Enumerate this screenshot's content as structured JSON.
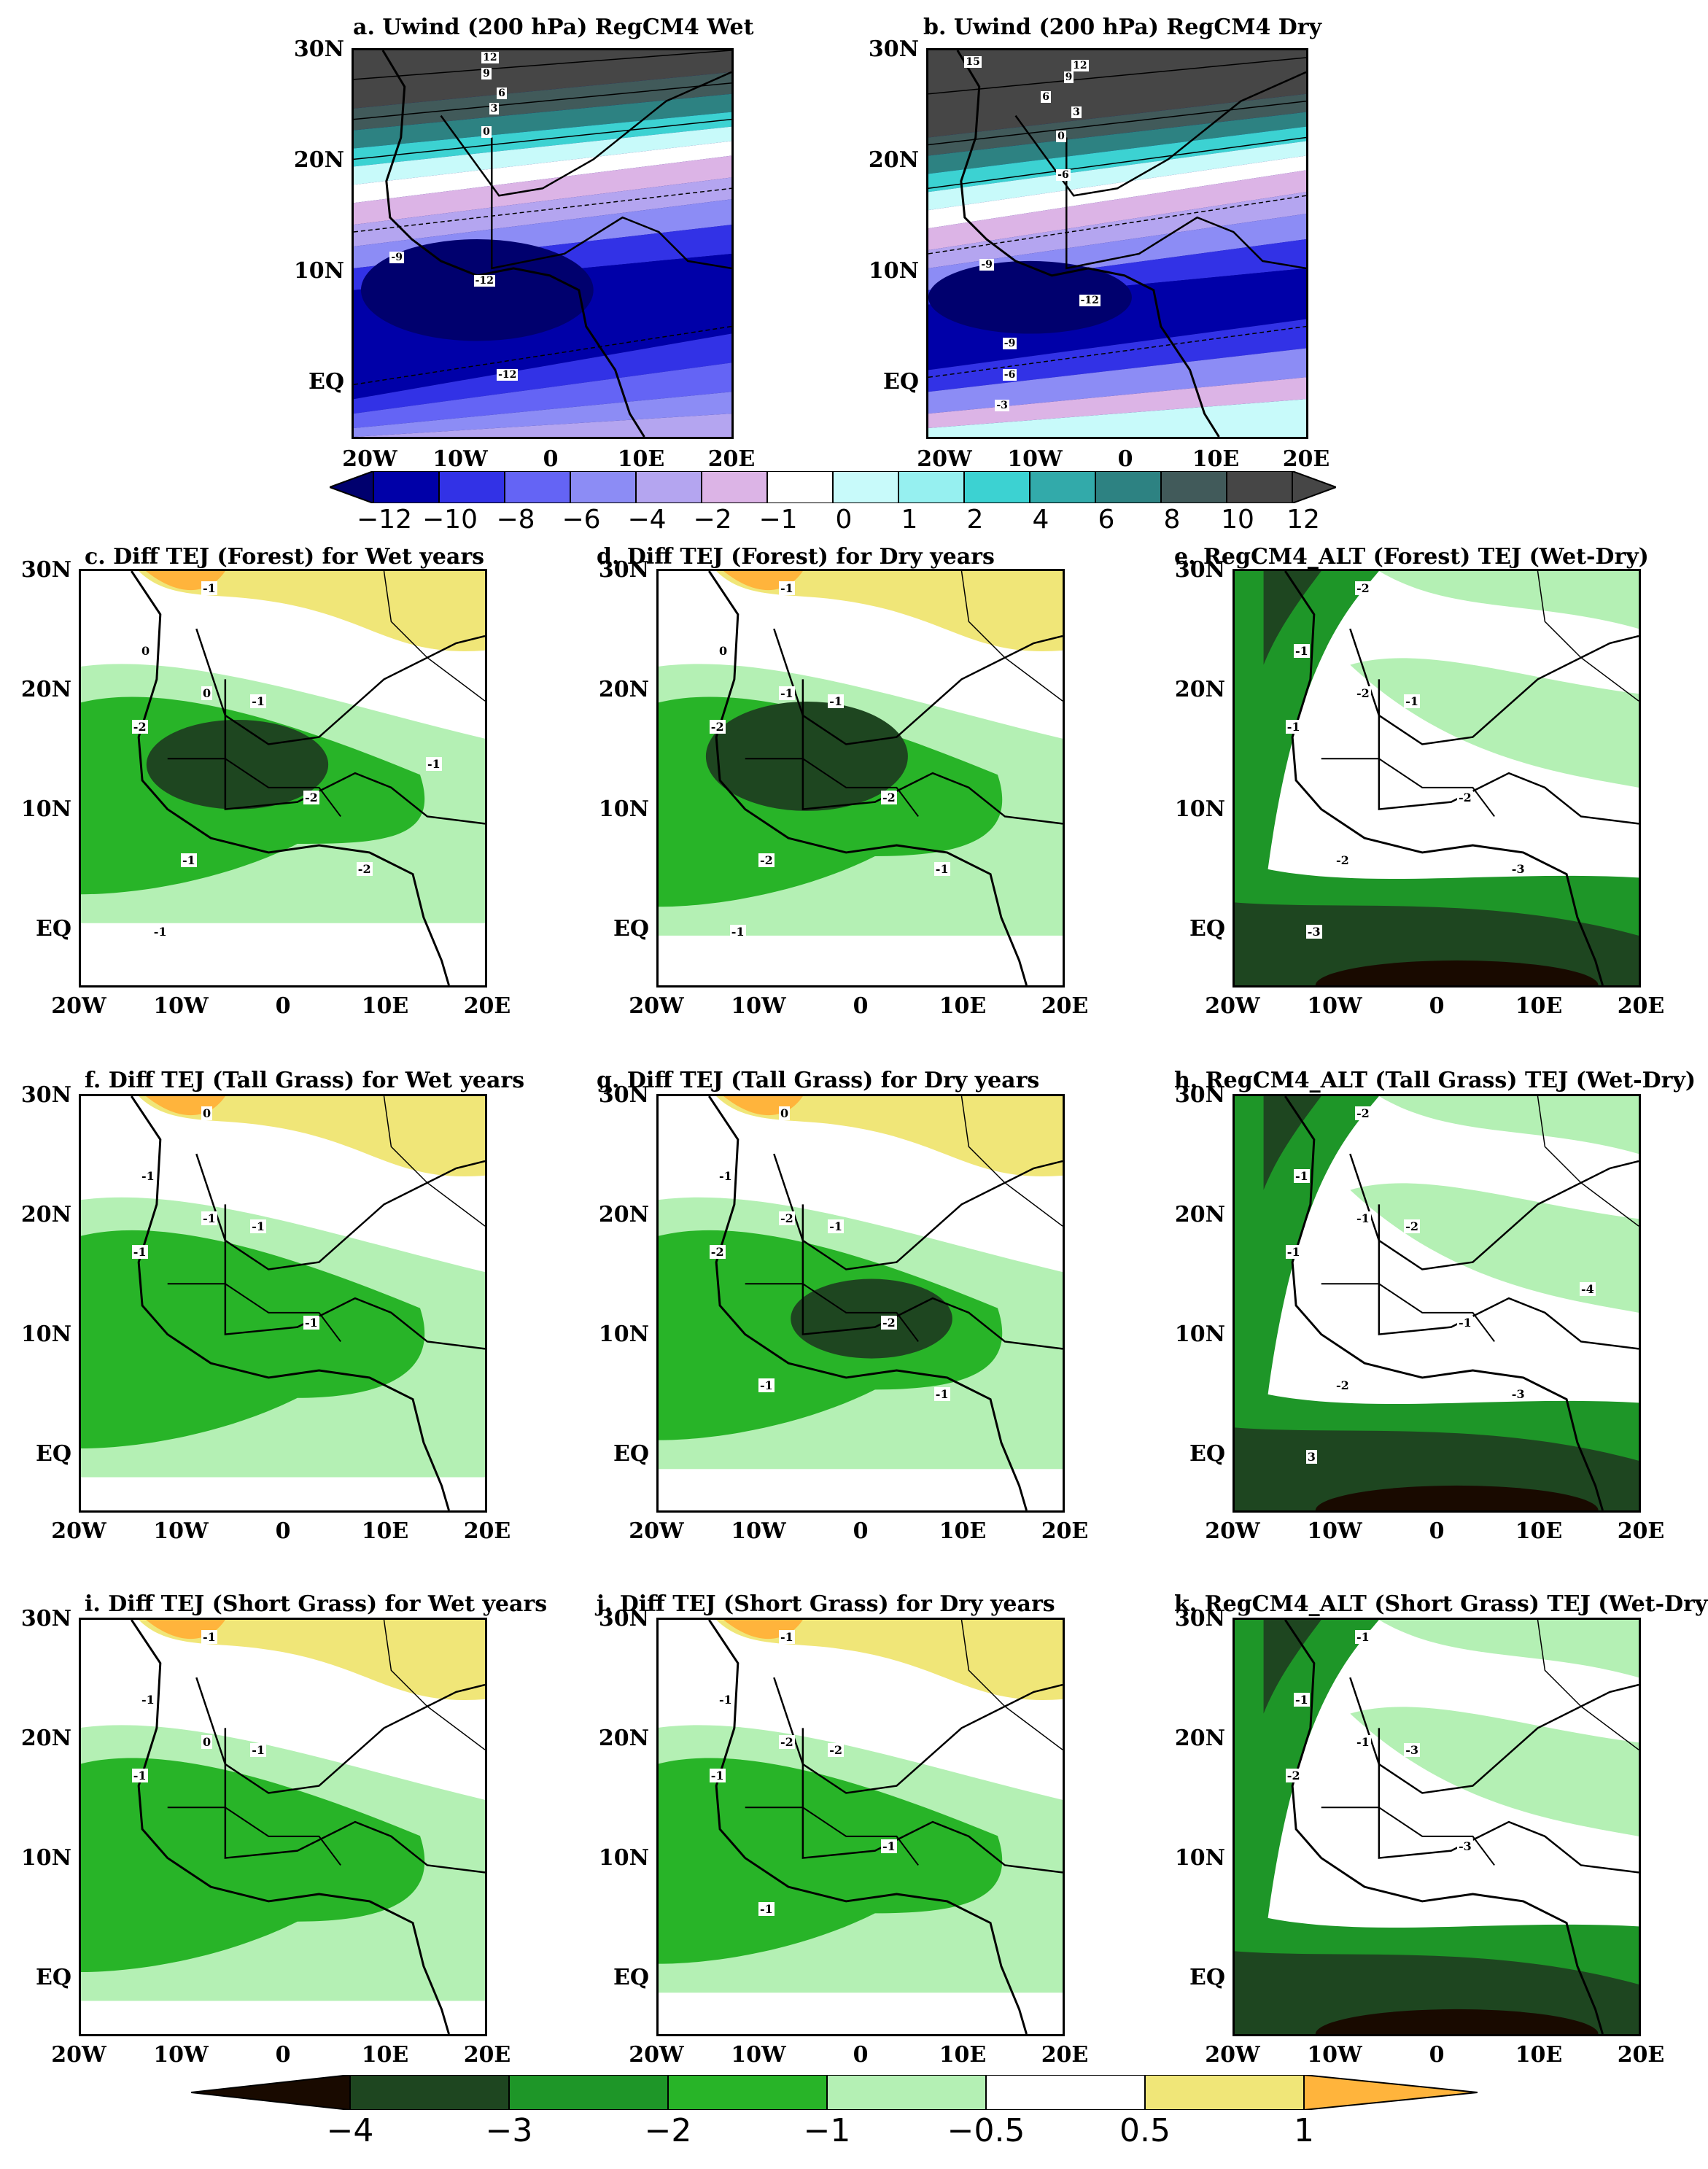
{
  "figure": {
    "top_panels": [
      {
        "id": "a",
        "title": "a. Uwind (200 hPa) RegCM4 Wet",
        "contour_labels": [
          "12",
          "9",
          "6",
          "3",
          "0",
          "-9",
          "-12",
          "-12"
        ]
      },
      {
        "id": "b",
        "title": "b. Uwind (200 hPa) RegCM4 Dry",
        "contour_labels": [
          "15",
          "12",
          "9",
          "6",
          "3",
          "0",
          "-6",
          "-9",
          "-12",
          "-9",
          "-6",
          "-3"
        ]
      }
    ],
    "diff_panels": [
      {
        "id": "c",
        "title": "c. Diff TEJ (Forest) for Wet years",
        "labels": [
          "-1",
          "0",
          "0",
          "-2",
          "-1",
          "-2",
          "-1",
          "-2",
          "-1",
          "-1"
        ]
      },
      {
        "id": "d",
        "title": "d. Diff TEJ (Forest) for Dry years",
        "labels": [
          "-1",
          "0",
          "-1",
          "-2",
          "-1",
          "-2",
          "-2",
          "-1",
          "-1"
        ]
      },
      {
        "id": "e",
        "title": "e. RegCM4_ALT (Forest) TEJ (Wet-Dry)",
        "labels": [
          "-2",
          "-1",
          "-2",
          "-1",
          "-1",
          "-2",
          "-2",
          "-3",
          "-3"
        ]
      },
      {
        "id": "f",
        "title": "f. Diff TEJ (Tall Grass) for Wet years",
        "labels": [
          "0",
          "-1",
          "-1",
          "-1",
          "-1",
          "-1"
        ]
      },
      {
        "id": "g",
        "title": "g. Diff TEJ (Tall Grass) for Dry years",
        "labels": [
          "0",
          "-1",
          "-2",
          "-2",
          "-1",
          "-2",
          "-1",
          "-1"
        ]
      },
      {
        "id": "h",
        "title": "h. RegCM4_ALT (Tall Grass) TEJ (Wet-Dry)",
        "labels": [
          "-2",
          "-1",
          "-1",
          "-1",
          "-2",
          "-1",
          "-2",
          "-3",
          "3",
          "-4"
        ]
      },
      {
        "id": "i",
        "title": "i. Diff TEJ (Short Grass) for Wet years",
        "labels": [
          "-1",
          "-1",
          "0",
          "-1",
          "-1"
        ]
      },
      {
        "id": "j",
        "title": "j. Diff TEJ (Short Grass) for Dry years",
        "labels": [
          "-1",
          "-1",
          "-2",
          "-1",
          "-2",
          "-1",
          "-1"
        ]
      },
      {
        "id": "k",
        "title": "k. RegCM4_ALT (Short Grass) TEJ (Wet-Dry)",
        "labels": [
          "-1",
          "-1",
          "-1",
          "-2",
          "-3",
          "-3"
        ]
      }
    ],
    "axes": {
      "y_ticks": [
        "30N",
        "20N",
        "10N",
        "EQ"
      ],
      "x_ticks": [
        "20W",
        "10W",
        "0",
        "10E",
        "20E"
      ],
      "lat_range": [
        -5,
        30
      ],
      "lon_range": [
        -20,
        20
      ]
    },
    "uwind_colorbar": {
      "labels": [
        "−12",
        "−10",
        "−8",
        "−6",
        "−4",
        "−2",
        "−1",
        "0",
        "1",
        "2",
        "4",
        "6",
        "8",
        "10",
        "12"
      ],
      "colors": {
        "lt_m12": "#00006e",
        "m12": "#0000a8",
        "m10": "#3232e6",
        "m8": "#6464f5",
        "m6": "#8c8cf5",
        "m4": "#b4a5f0",
        "m2": "#dcb4e6",
        "m1": "#ffffff",
        "z0": "#ffffff",
        "p1": "#c8fafa",
        "p2": "#96f0f0",
        "p4": "#3cd2d2",
        "p6": "#32aaaa",
        "p8": "#2d8282",
        "p10": "#415a5a",
        "gt_p12": "#464646"
      }
    },
    "tej_colorbar": {
      "labels": [
        "−4",
        "−3",
        "−2",
        "−1",
        "−0.5",
        "0.5",
        "1"
      ],
      "colors": {
        "lt_m4": "#190a00",
        "m4": "#1e4620",
        "m3": "#1e9628",
        "m2": "#28b428",
        "m1": "#b4f0b4",
        "half": "#ffffff",
        "p05": "#f0e678",
        "p1": "#ffb43c"
      }
    },
    "map_colors": {
      "border": "#000000",
      "coast": "#000000",
      "contour": "#000000"
    }
  }
}
